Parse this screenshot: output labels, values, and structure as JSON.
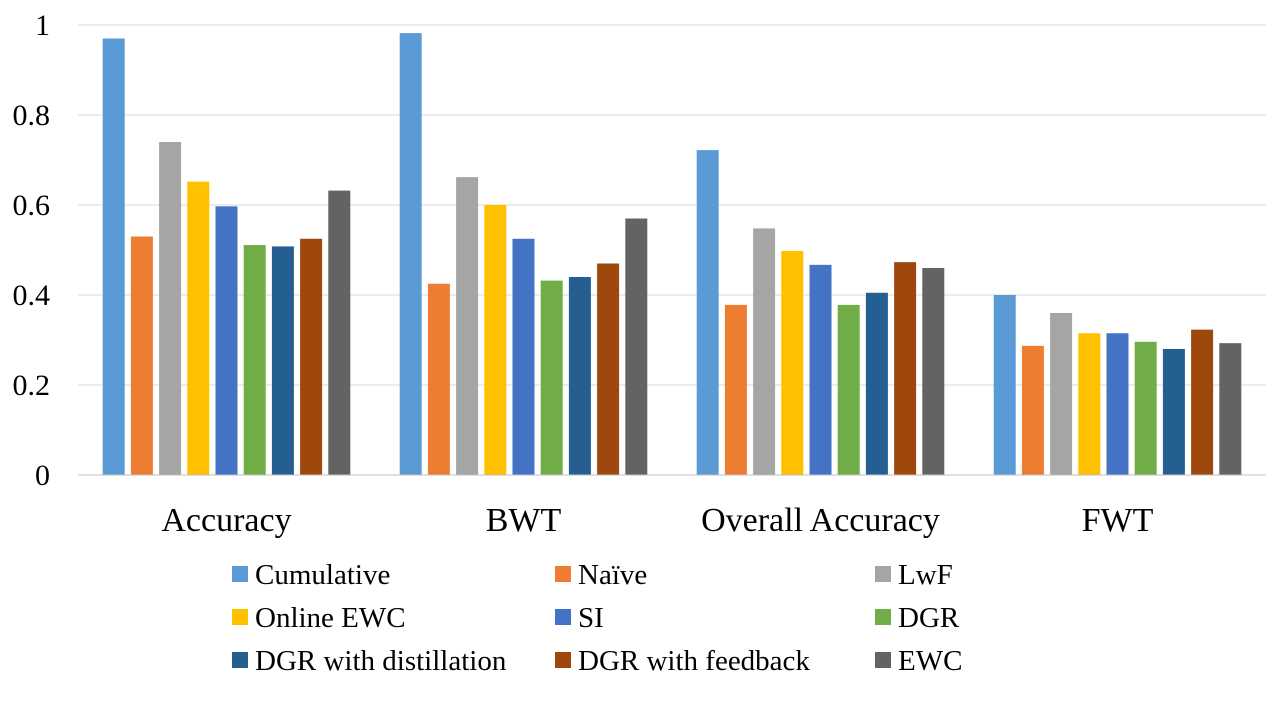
{
  "chart_data": {
    "type": "bar",
    "title": "",
    "xlabel": "",
    "ylabel": "",
    "ylim": [
      0,
      1
    ],
    "yticks": [
      0,
      0.2,
      0.4,
      0.6,
      0.8,
      1
    ],
    "ytick_labels": [
      "0",
      "0.2",
      "0.4",
      "0.6",
      "0.8",
      "1"
    ],
    "grid": true,
    "legend_position": "bottom",
    "categories": [
      "Accuracy",
      "BWT",
      "Overall Accuracy",
      "FWT"
    ],
    "series": [
      {
        "name": "Cumulative",
        "color": "#5b9bd5",
        "values": [
          0.97,
          0.982,
          0.722,
          0.4
        ]
      },
      {
        "name": "Naïve",
        "color": "#ed7d31",
        "values": [
          0.53,
          0.425,
          0.378,
          0.287
        ]
      },
      {
        "name": "LwF",
        "color": "#a5a5a5",
        "values": [
          0.74,
          0.662,
          0.548,
          0.36
        ]
      },
      {
        "name": "Online EWC",
        "color": "#ffc000",
        "values": [
          0.652,
          0.6,
          0.498,
          0.315
        ]
      },
      {
        "name": "SI",
        "color": "#4472c4",
        "values": [
          0.597,
          0.525,
          0.467,
          0.315
        ]
      },
      {
        "name": "DGR",
        "color": "#70ad47",
        "values": [
          0.511,
          0.432,
          0.378,
          0.296
        ]
      },
      {
        "name": "DGR with distillation",
        "color": "#255e91",
        "values": [
          0.508,
          0.44,
          0.405,
          0.28
        ]
      },
      {
        "name": "DGR with feedback",
        "color": "#9e480e",
        "values": [
          0.525,
          0.47,
          0.473,
          0.323
        ]
      },
      {
        "name": "EWC",
        "color": "#636363",
        "values": [
          0.632,
          0.57,
          0.46,
          0.293
        ]
      }
    ]
  }
}
